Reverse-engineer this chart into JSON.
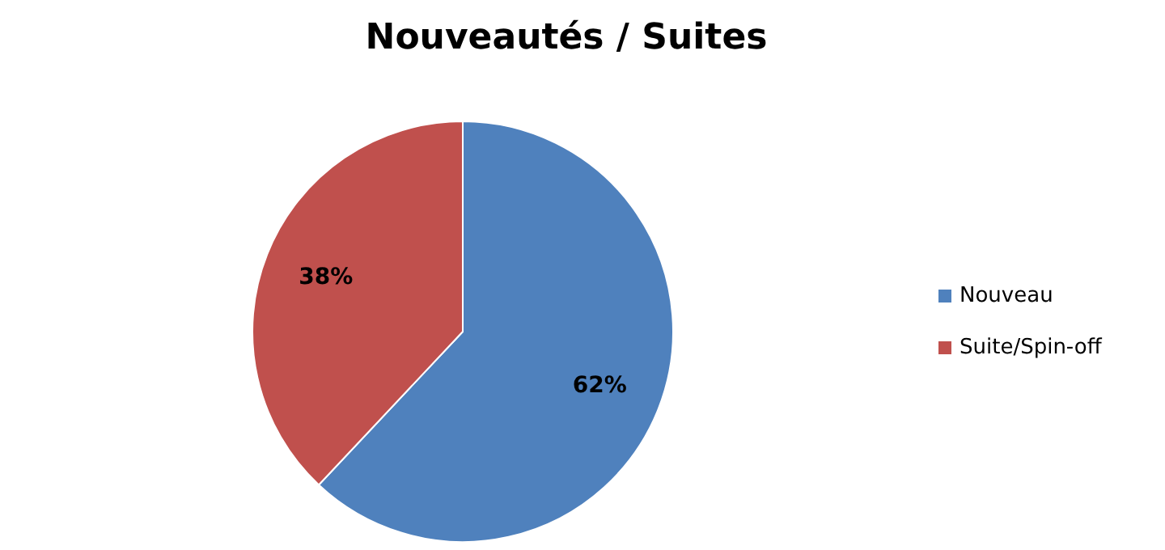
{
  "chart_data": {
    "type": "pie",
    "title": "Nouveautés / Suites",
    "categories": [
      "Nouveau",
      "Suite/Spin-off"
    ],
    "values": [
      62,
      38
    ],
    "colors": [
      "#4f81bd",
      "#c0504d"
    ],
    "value_labels": [
      "62%",
      "38%"
    ],
    "legend": "right"
  }
}
